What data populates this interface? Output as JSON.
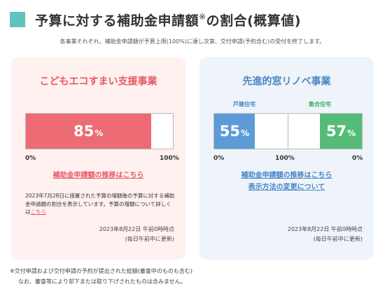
{
  "header": {
    "title_main": "予算に対する補助金申請額",
    "title_mark": "※",
    "title_tail": "の割合(概算値)",
    "subtitle": "各事業それぞれ、補助金申請額が予算上限(100%)に達し次第、交付申請(予約含む)の受付を終了します。"
  },
  "colors": {
    "accent_teal": "#5fc4bd",
    "left_red": "#ec6b74",
    "right_blue": "#5d9bd8",
    "right_green": "#54bc77"
  },
  "left_card": {
    "title": "こどもエコすまい支援事業",
    "progress": {
      "value": 85,
      "num_text": "85",
      "unit": "%"
    },
    "axis_min": "0%",
    "axis_max": "100%",
    "link": "補助金申請額の推移はこちら",
    "note_text": "2023年7月28日に措置された予算の増額後の予算に対する補助金申請額の割合を表示しています。予算の増額について詳しくは",
    "note_link": "こちら",
    "stamp_date": "2023年8月22日 午前0時時点",
    "stamp_update": "(毎日午前中に更新)"
  },
  "right_card": {
    "title": "先進的窓リノベ事業",
    "house": {
      "label": "戸建住宅",
      "value": 55,
      "num_text": "55",
      "unit": "%"
    },
    "apartment": {
      "label": "集合住宅",
      "value": 57,
      "num_text": "57",
      "unit": "%"
    },
    "axis_left": "0%",
    "axis_mid": "100%",
    "axis_right": "0%",
    "link1": "補助金申請額の推移はこちら",
    "link2": "表示方法の変更について",
    "stamp_date": "2023年8月22日 午前0時時点",
    "stamp_update": "(毎日午前中に更新)"
  },
  "footer": {
    "line1": "※交付申請および交付申請の予約が提出された総額(審査中のものも含む)",
    "line2": "なお、審査等により却下または取り下げされたものは含みません。"
  }
}
